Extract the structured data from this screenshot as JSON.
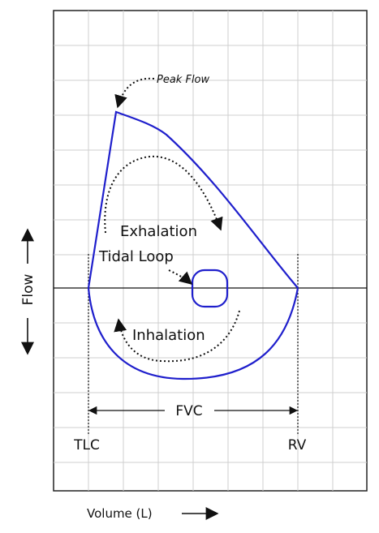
{
  "labels": {
    "peak_flow": "Peak Flow",
    "exhalation": "Exhalation",
    "tidal_loop": "Tidal Loop",
    "inhalation": "Inhalation",
    "fvc": "FVC",
    "tlc": "TLC",
    "rv": "RV",
    "flow_axis": "Flow",
    "volume_axis": "Volume (L)"
  },
  "colors": {
    "curve": "#1f1fcc",
    "grid": "#cfcfcf",
    "axis": "#111111"
  }
}
